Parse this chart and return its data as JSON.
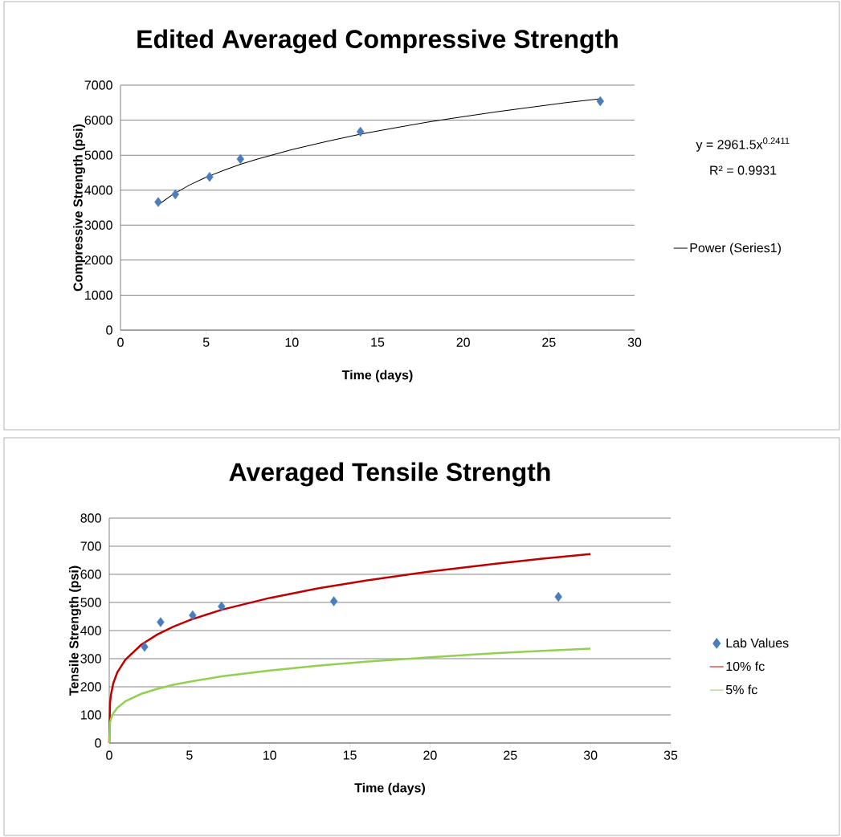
{
  "chart_data": [
    {
      "type": "scatter",
      "title": "Edited Averaged Compressive Strength",
      "xlabel": "Time (days)",
      "ylabel": "Compressive Strength (psi)",
      "xlim": [
        0,
        30
      ],
      "xticks": [
        0,
        5,
        10,
        15,
        20,
        25,
        30
      ],
      "ylim": [
        0,
        7000
      ],
      "yticks": [
        0,
        1000,
        2000,
        3000,
        4000,
        5000,
        6000,
        7000
      ],
      "grid": "y",
      "legend": "right",
      "annotations": [
        "y = 2961.5x$^{0.2411}$",
        "R² = 0.9931"
      ],
      "series": [
        {
          "color": "#4a7ebb",
          "marker": "diamond",
          "x": [
            2.2,
            3.2,
            5.2,
            7,
            14,
            28
          ],
          "values": [
            3660,
            3880,
            4380,
            4890,
            5670,
            6540
          ]
        },
        {
          "type": "line",
          "name": "Power (Series1)",
          "color": "#000000",
          "marker": "none",
          "line_style": "solid",
          "x": [
            2.2,
            3,
            4,
            5,
            6,
            7,
            8,
            10,
            12,
            14,
            16,
            18,
            20,
            22,
            24,
            26,
            28
          ],
          "values": [
            3580,
            3860,
            4140,
            4370,
            4560,
            4740,
            4890,
            5160,
            5390,
            5600,
            5780,
            5950,
            6100,
            6240,
            6370,
            6500,
            6610
          ]
        }
      ]
    },
    {
      "type": "scatter",
      "title": "Averaged Tensile Strength",
      "xlabel": "Time (days)",
      "ylabel": "Tensile Strength (psi)",
      "xlim": [
        0,
        35
      ],
      "xticks": [
        0,
        5,
        10,
        15,
        20,
        25,
        30,
        35
      ],
      "ylim": [
        0,
        800
      ],
      "yticks": [
        0,
        100,
        200,
        300,
        400,
        500,
        600,
        700,
        800
      ],
      "grid": "y",
      "legend": "right",
      "series": [
        {
          "name": "Lab Values",
          "color": "#4a7ebb",
          "marker": "diamond",
          "x": [
            2.2,
            3.2,
            5.2,
            7,
            14,
            28
          ],
          "values": [
            342,
            430,
            454,
            486,
            504,
            520
          ]
        },
        {
          "type": "line",
          "name": "10% fc",
          "color": "#c00000",
          "marker": "none",
          "line_style": "solid",
          "x": [
            0,
            0.05,
            0.1,
            0.25,
            0.5,
            1,
            2,
            3,
            4,
            5,
            7,
            10,
            13,
            16,
            20,
            24,
            27,
            30
          ],
          "values": [
            0,
            144,
            170,
            212,
            251,
            296,
            350,
            386,
            414,
            437,
            474,
            516,
            550,
            578,
            610,
            637,
            656,
            672
          ]
        },
        {
          "type": "line",
          "name": "5% fc",
          "color": "#92d050",
          "marker": "none",
          "line_style": "solid",
          "x": [
            0,
            0.05,
            0.1,
            0.25,
            0.5,
            1,
            2,
            3,
            4,
            5,
            7,
            10,
            13,
            16,
            20,
            24,
            27,
            30
          ],
          "values": [
            0,
            72,
            85,
            106,
            125,
            148,
            175,
            193,
            207,
            218,
            237,
            258,
            275,
            289,
            305,
            319,
            328,
            336
          ]
        }
      ]
    }
  ]
}
